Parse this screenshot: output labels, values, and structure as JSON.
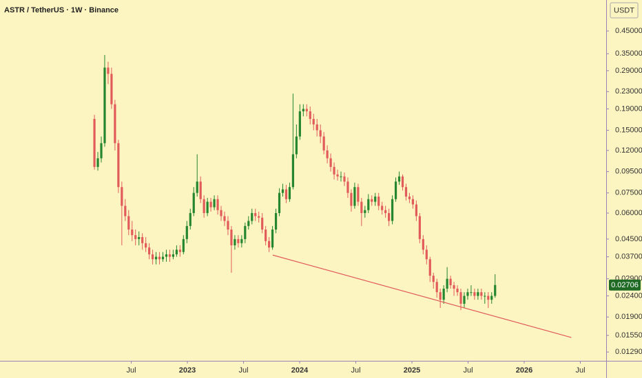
{
  "chart_data": {
    "type": "candlestick",
    "title": "ASTR / TetherUS · 1W · Binance",
    "currency": "USDT",
    "log_scale": true,
    "up_color": "#24862e",
    "down_color": "#e25b5b",
    "last_price_color": "#1f6b26",
    "xlim": [
      2021.331,
      2026.73
    ],
    "xticks": [
      {
        "value": 2022.5,
        "label": "Jul"
      },
      2023,
      {
        "value": 2023.5,
        "label": "Jul"
      },
      2024,
      {
        "value": 2024.5,
        "label": "Jul"
      },
      2025,
      {
        "value": 2025.5,
        "label": "Jul"
      },
      2026,
      {
        "value": 2026.5,
        "label": "Jul"
      }
    ],
    "ylim": [
      0.0117,
      0.634
    ],
    "yticks": [
      {
        "value": 0.45,
        "label": "0.45000"
      },
      {
        "value": 0.35,
        "label": "0.35000"
      },
      {
        "value": 0.29,
        "label": "0.29000"
      },
      {
        "value": 0.23,
        "label": "0.23000"
      },
      {
        "value": 0.19,
        "label": "0.19000"
      },
      {
        "value": 0.15,
        "label": "0.15000"
      },
      {
        "value": 0.12,
        "label": "0.12000"
      },
      {
        "value": 0.095,
        "label": "0.09500"
      },
      {
        "value": 0.075,
        "label": "0.07500"
      },
      {
        "value": 0.06,
        "label": "0.06000"
      },
      {
        "value": 0.045,
        "label": "0.04500"
      },
      {
        "value": 0.037,
        "label": "0.03700"
      },
      {
        "value": 0.029,
        "label": "0.02900"
      },
      {
        "value": 0.024,
        "label": "0.02400"
      },
      {
        "value": 0.019,
        "label": "0.01900"
      },
      {
        "value": 0.0155,
        "label": "0.01550"
      },
      {
        "value": 0.0129,
        "label": "0.01290"
      }
    ],
    "x": [
      2022.172,
      2022.2025,
      2022.233,
      2022.2635,
      2022.294,
      2022.3245,
      2022.355,
      2022.3855,
      2022.416,
      2022.4465,
      2022.477,
      2022.5075,
      2022.538,
      2022.5685,
      2022.599,
      2022.6295,
      2022.66,
      2022.6905,
      2022.721,
      2022.7515,
      2022.782,
      2022.8125,
      2022.843,
      2022.8735,
      2022.904,
      2022.9345,
      2022.965,
      2022.9955,
      2023.026,
      2023.0565,
      2023.087,
      2023.1175,
      2023.148,
      2023.1785,
      2023.209,
      2023.2395,
      2023.27,
      2023.3005,
      2023.331,
      2023.3615,
      2023.392,
      2023.4225,
      2023.453,
      2023.4835,
      2023.514,
      2023.5445,
      2023.575,
      2023.6055,
      2023.636,
      2023.6665,
      2023.697,
      2023.7275,
      2023.758,
      2023.7885,
      2023.819,
      2023.8495,
      2023.88,
      2023.9105,
      2023.941,
      2023.9715,
      2024.002,
      2024.0325,
      2024.063,
      2024.0935,
      2024.124,
      2024.1545,
      2024.185,
      2024.2155,
      2024.246,
      2024.2765,
      2024.307,
      2024.3375,
      2024.368,
      2024.3985,
      2024.429,
      2024.4595,
      2024.49,
      2024.5205,
      2024.551,
      2024.5815,
      2024.612,
      2024.6425,
      2024.673,
      2024.7035,
      2024.734,
      2024.7645,
      2024.795,
      2024.8255,
      2024.856,
      2024.8865,
      2024.917,
      2024.9475,
      2024.978,
      2025.0085,
      2025.039,
      2025.0695,
      2025.1,
      2025.1305,
      2025.161,
      2025.1915,
      2025.222,
      2025.2525,
      2025.283,
      2025.3135,
      2025.344,
      2025.3745,
      2025.405,
      2025.4355,
      2025.466,
      2025.4965,
      2025.527,
      2025.5575,
      2025.588,
      2025.6185,
      2025.649,
      2025.6795,
      2025.71,
      2025.7405
    ],
    "open": [
      0.17,
      0.1,
      0.11,
      0.13,
      0.3,
      0.28,
      0.2,
      0.13,
      0.08,
      0.065,
      0.058,
      0.05,
      0.047,
      0.045,
      0.046,
      0.043,
      0.041,
      0.038,
      0.036,
      0.037,
      0.036,
      0.037,
      0.038,
      0.037,
      0.038,
      0.04,
      0.039,
      0.045,
      0.052,
      0.06,
      0.075,
      0.085,
      0.07,
      0.06,
      0.068,
      0.064,
      0.07,
      0.062,
      0.058,
      0.055,
      0.05,
      0.042,
      0.045,
      0.043,
      0.045,
      0.052,
      0.055,
      0.06,
      0.058,
      0.057,
      0.05,
      0.044,
      0.041,
      0.05,
      0.06,
      0.075,
      0.078,
      0.07,
      0.08,
      0.115,
      0.14,
      0.185,
      0.19,
      0.185,
      0.17,
      0.16,
      0.15,
      0.14,
      0.12,
      0.11,
      0.1,
      0.092,
      0.09,
      0.09,
      0.085,
      0.075,
      0.065,
      0.08,
      0.068,
      0.06,
      0.062,
      0.07,
      0.068,
      0.072,
      0.065,
      0.062,
      0.06,
      0.055,
      0.07,
      0.085,
      0.09,
      0.08,
      0.072,
      0.07,
      0.066,
      0.058,
      0.045,
      0.04,
      0.036,
      0.03,
      0.028,
      0.025,
      0.023,
      0.026,
      0.029,
      0.027,
      0.026,
      0.025,
      0.022,
      0.024,
      0.025,
      0.025,
      0.024,
      0.025,
      0.024,
      0.024,
      0.023,
      0.024
    ],
    "high": [
      0.178,
      0.118,
      0.14,
      0.345,
      0.32,
      0.3,
      0.21,
      0.135,
      0.085,
      0.07,
      0.062,
      0.055,
      0.05,
      0.049,
      0.048,
      0.046,
      0.043,
      0.04,
      0.039,
      0.039,
      0.039,
      0.04,
      0.04,
      0.04,
      0.042,
      0.042,
      0.047,
      0.055,
      0.063,
      0.08,
      0.115,
      0.09,
      0.073,
      0.071,
      0.071,
      0.073,
      0.073,
      0.065,
      0.061,
      0.058,
      0.052,
      0.047,
      0.047,
      0.047,
      0.054,
      0.058,
      0.063,
      0.063,
      0.061,
      0.06,
      0.052,
      0.046,
      0.052,
      0.063,
      0.079,
      0.083,
      0.082,
      0.084,
      0.225,
      0.16,
      0.2,
      0.2,
      0.2,
      0.195,
      0.18,
      0.17,
      0.16,
      0.147,
      0.127,
      0.116,
      0.105,
      0.097,
      0.095,
      0.094,
      0.089,
      0.078,
      0.084,
      0.083,
      0.071,
      0.065,
      0.074,
      0.073,
      0.075,
      0.075,
      0.068,
      0.065,
      0.063,
      0.073,
      0.089,
      0.095,
      0.092,
      0.083,
      0.075,
      0.073,
      0.069,
      0.06,
      0.047,
      0.042,
      0.037,
      0.031,
      0.029,
      0.026,
      0.027,
      0.033,
      0.03,
      0.028,
      0.027,
      0.026,
      0.025,
      0.026,
      0.027,
      0.026,
      0.026,
      0.026,
      0.025,
      0.025,
      0.025,
      0.0305
    ],
    "low": [
      0.097,
      0.096,
      0.105,
      0.125,
      0.25,
      0.19,
      0.12,
      0.075,
      0.042,
      0.055,
      0.047,
      0.044,
      0.042,
      0.042,
      0.04,
      0.039,
      0.036,
      0.034,
      0.034,
      0.034,
      0.035,
      0.035,
      0.035,
      0.036,
      0.037,
      0.037,
      0.038,
      0.043,
      0.05,
      0.058,
      0.072,
      0.067,
      0.057,
      0.058,
      0.061,
      0.062,
      0.059,
      0.055,
      0.052,
      0.047,
      0.031,
      0.04,
      0.041,
      0.041,
      0.043,
      0.05,
      0.053,
      0.055,
      0.054,
      0.048,
      0.042,
      0.039,
      0.04,
      0.048,
      0.058,
      0.072,
      0.067,
      0.068,
      0.078,
      0.11,
      0.135,
      0.175,
      0.175,
      0.16,
      0.15,
      0.14,
      0.13,
      0.115,
      0.104,
      0.095,
      0.087,
      0.086,
      0.085,
      0.081,
      0.071,
      0.061,
      0.063,
      0.065,
      0.052,
      0.057,
      0.06,
      0.065,
      0.065,
      0.062,
      0.059,
      0.057,
      0.052,
      0.053,
      0.068,
      0.082,
      0.077,
      0.069,
      0.067,
      0.063,
      0.055,
      0.043,
      0.038,
      0.034,
      0.028,
      0.026,
      0.0235,
      0.021,
      0.022,
      0.025,
      0.026,
      0.024,
      0.024,
      0.0205,
      0.021,
      0.023,
      0.024,
      0.023,
      0.023,
      0.023,
      0.022,
      0.021,
      0.022,
      0.0235
    ],
    "close": [
      0.1,
      0.11,
      0.13,
      0.3,
      0.28,
      0.2,
      0.13,
      0.08,
      0.065,
      0.058,
      0.05,
      0.047,
      0.045,
      0.046,
      0.043,
      0.041,
      0.038,
      0.036,
      0.037,
      0.036,
      0.037,
      0.038,
      0.037,
      0.038,
      0.04,
      0.039,
      0.045,
      0.052,
      0.06,
      0.075,
      0.085,
      0.07,
      0.06,
      0.068,
      0.064,
      0.07,
      0.062,
      0.058,
      0.055,
      0.05,
      0.042,
      0.045,
      0.043,
      0.045,
      0.052,
      0.055,
      0.06,
      0.058,
      0.057,
      0.05,
      0.044,
      0.041,
      0.05,
      0.06,
      0.075,
      0.078,
      0.07,
      0.08,
      0.115,
      0.14,
      0.185,
      0.19,
      0.185,
      0.17,
      0.16,
      0.15,
      0.14,
      0.12,
      0.11,
      0.1,
      0.092,
      0.09,
      0.09,
      0.085,
      0.075,
      0.065,
      0.08,
      0.068,
      0.06,
      0.062,
      0.07,
      0.068,
      0.072,
      0.065,
      0.062,
      0.06,
      0.055,
      0.07,
      0.085,
      0.09,
      0.08,
      0.072,
      0.07,
      0.066,
      0.058,
      0.045,
      0.04,
      0.036,
      0.03,
      0.028,
      0.025,
      0.023,
      0.026,
      0.029,
      0.027,
      0.026,
      0.025,
      0.022,
      0.024,
      0.025,
      0.025,
      0.024,
      0.025,
      0.024,
      0.024,
      0.023,
      0.024,
      0.02706
    ],
    "trendline": {
      "x": [
        2023.76,
        2026.42
      ],
      "y": [
        0.0377,
        0.01515
      ],
      "color": "#e05a5a"
    }
  }
}
